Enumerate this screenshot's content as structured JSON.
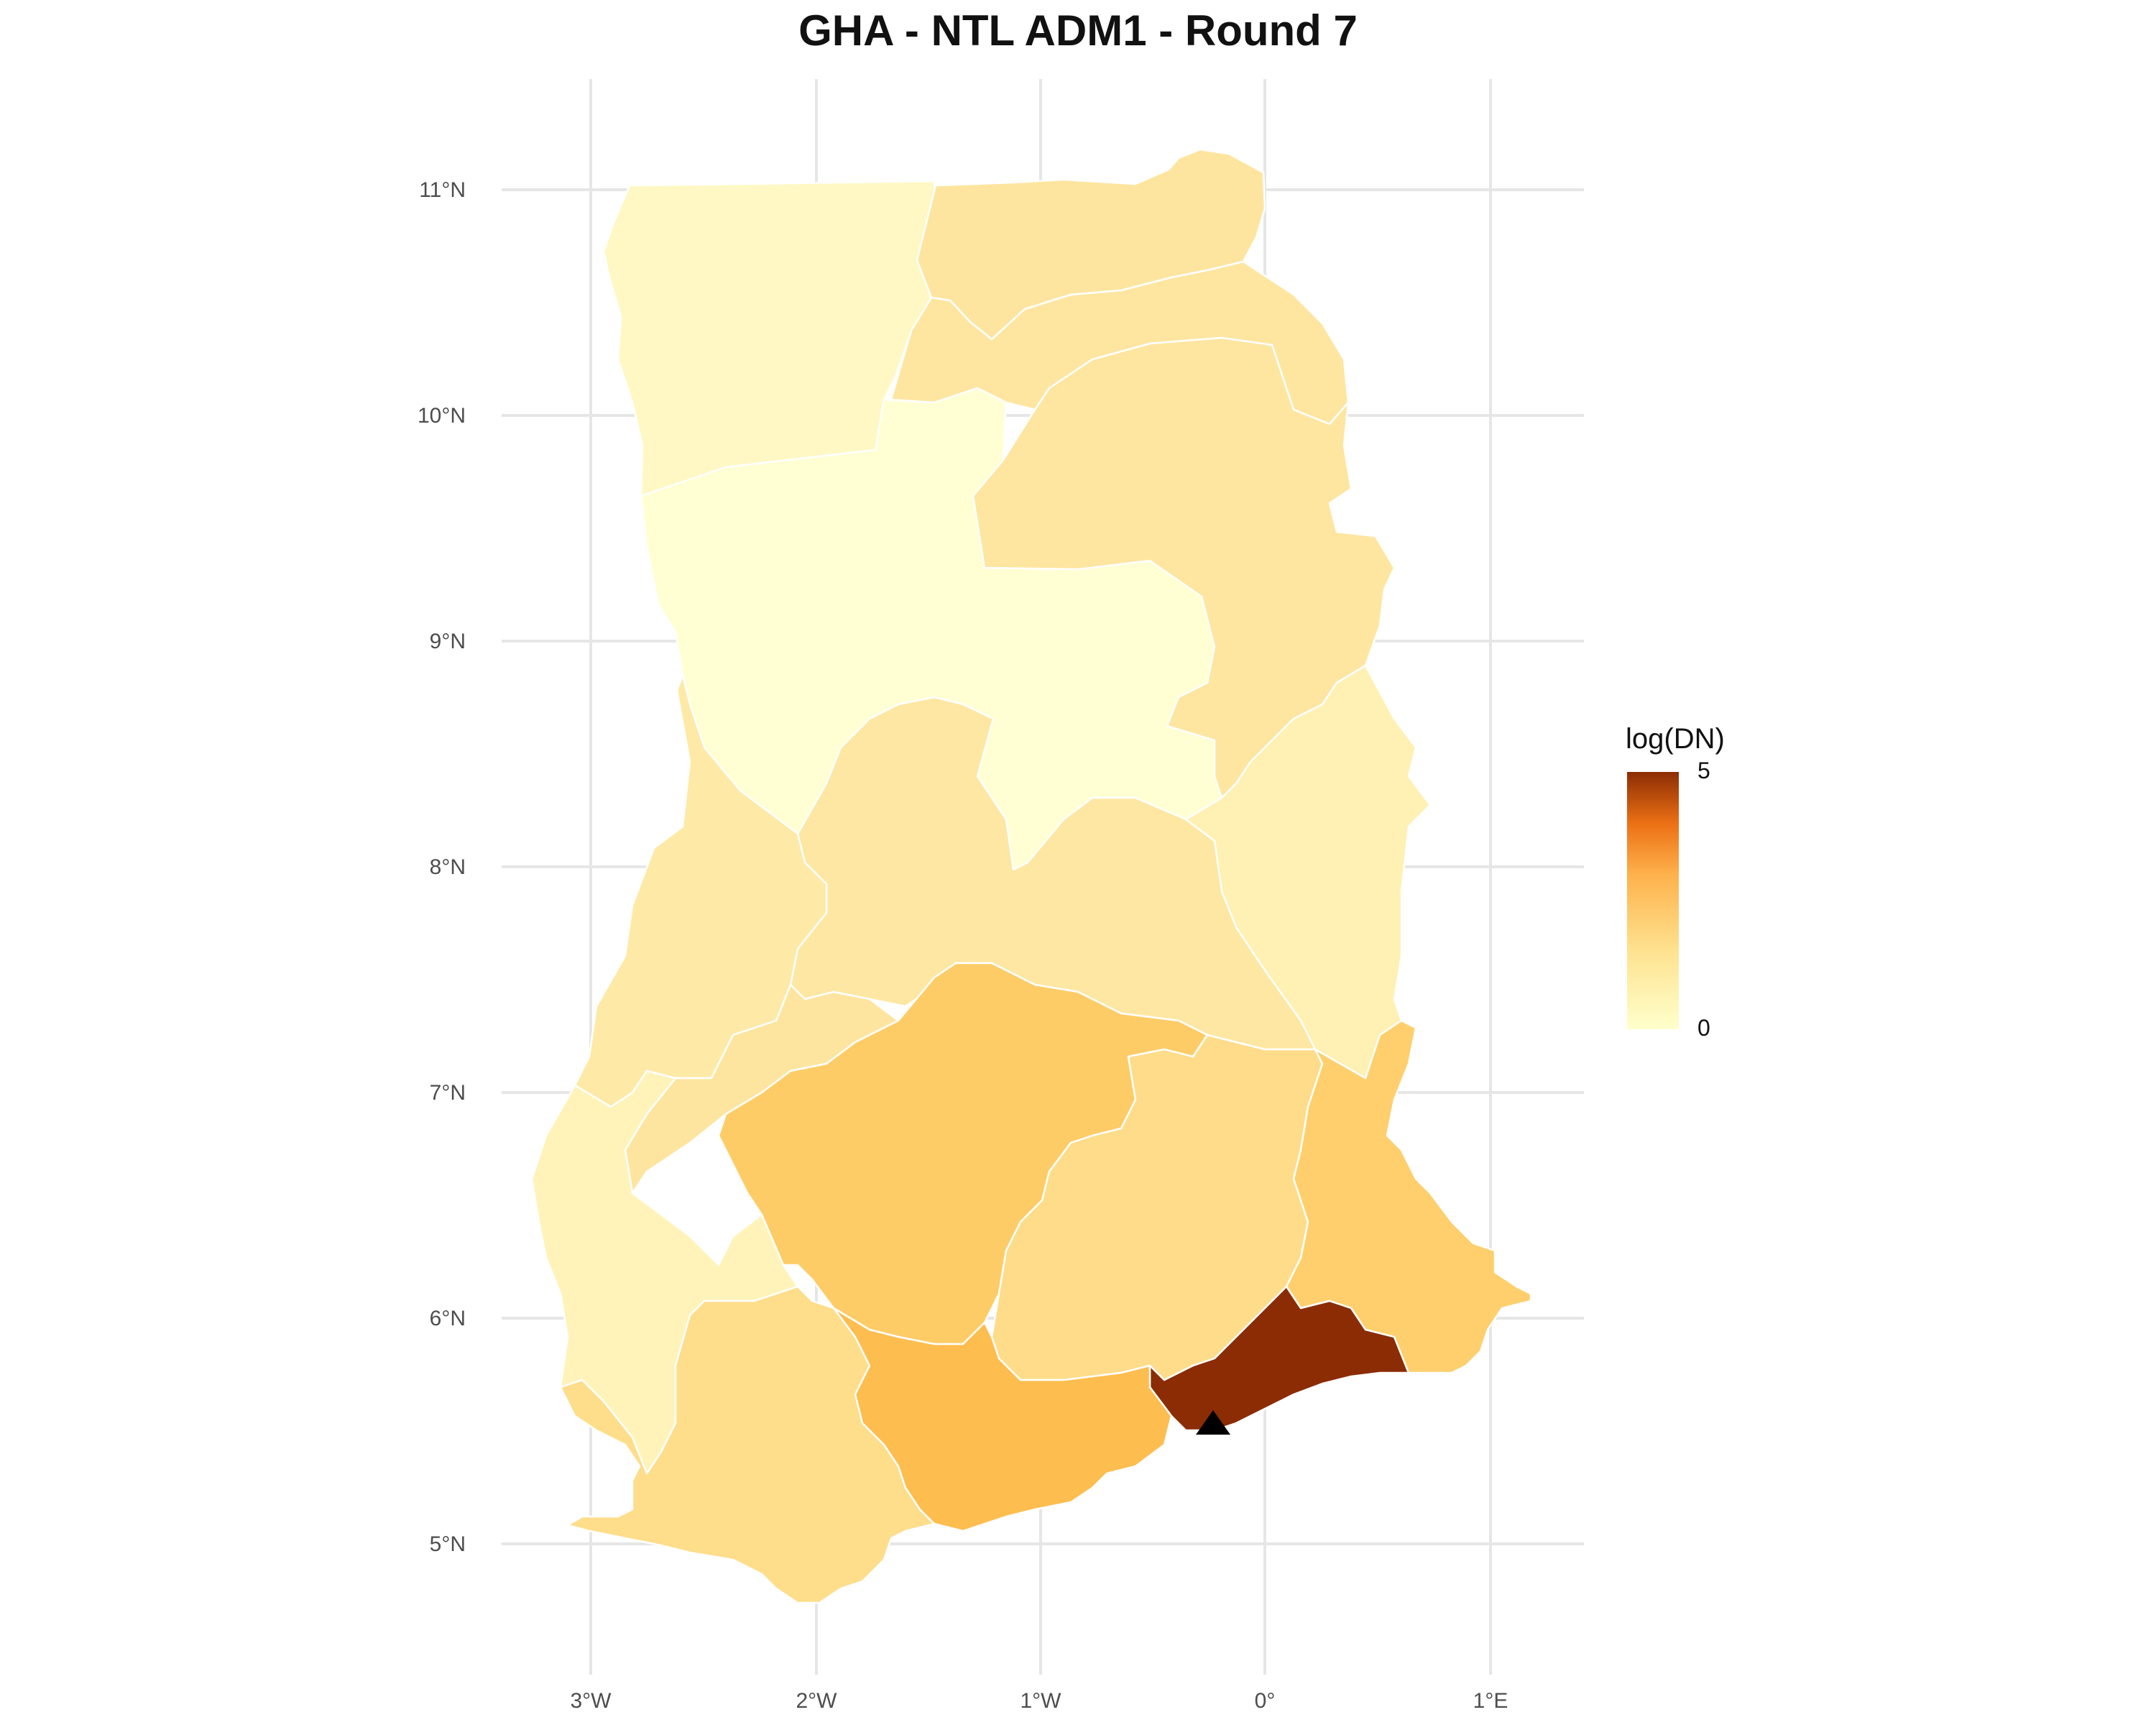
{
  "title": "GHA - NTL ADM1 - Round 7",
  "legend": {
    "title": "log(DN)",
    "max_label": "5",
    "min_label": "0",
    "color_low": "#FFFFCC",
    "color_mid": "#FEB24C",
    "color_high": "#8C2D04"
  },
  "axes": {
    "x_ticks": [
      "3°W",
      "2°W",
      "1°W",
      "0°",
      "1°E"
    ],
    "y_ticks": [
      "11°N",
      "10°N",
      "9°N",
      "8°N",
      "7°N",
      "6°N",
      "5°N"
    ]
  },
  "marker": {
    "shape": "triangle",
    "icon": "triangle-marker-icon",
    "color": "#000000"
  },
  "regions": [
    {
      "id": "upper-west",
      "color": "#FFF8C4"
    },
    {
      "id": "upper-east",
      "color": "#FEE59F"
    },
    {
      "id": "north-east",
      "color": "#FEE6A1"
    },
    {
      "id": "savannah",
      "color": "#FFFFD3"
    },
    {
      "id": "northern",
      "color": "#FEE6A0"
    },
    {
      "id": "oti",
      "color": "#FFF0B3"
    },
    {
      "id": "bono-east",
      "color": "#FEE7A2"
    },
    {
      "id": "bono",
      "color": "#FEE9A6"
    },
    {
      "id": "ahafo",
      "color": "#FEE59F"
    },
    {
      "id": "western-north",
      "color": "#FFF3BA"
    },
    {
      "id": "ashanti",
      "color": "#FECC66"
    },
    {
      "id": "eastern",
      "color": "#FEDC8A"
    },
    {
      "id": "volta",
      "color": "#FECF6C"
    },
    {
      "id": "western",
      "color": "#FEDD8B"
    },
    {
      "id": "central",
      "color": "#FEBD4F"
    },
    {
      "id": "greater-accra",
      "color": "#8B2C04"
    }
  ]
}
